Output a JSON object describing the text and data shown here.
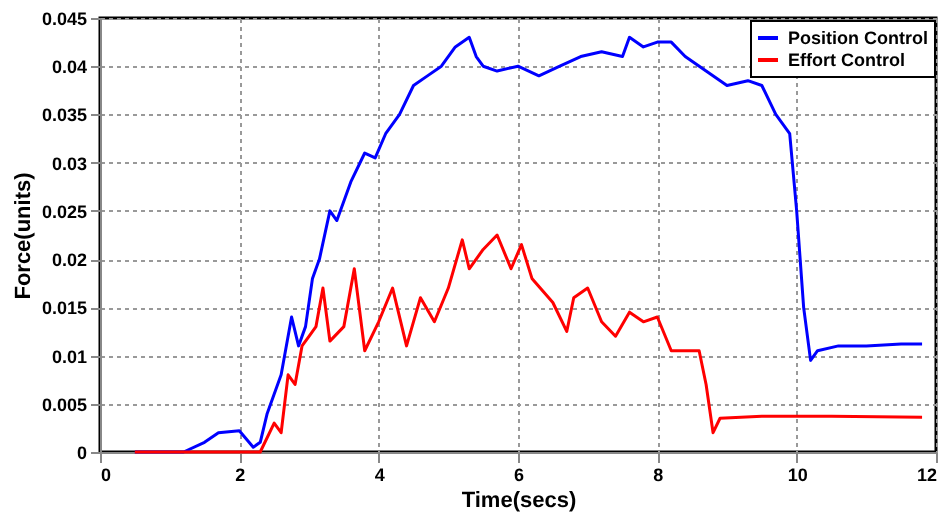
{
  "chart_data": {
    "type": "line",
    "xlabel": "Time(secs)",
    "ylabel": "Force(units)",
    "xlim": [
      0,
      12
    ],
    "xticks": [
      0,
      2,
      4,
      6,
      8,
      10,
      12
    ],
    "ylim": [
      0,
      0.045
    ],
    "yticks": [
      0,
      0.005,
      0.01,
      0.015,
      0.02,
      0.025,
      0.03,
      0.035,
      0.04,
      0.045
    ],
    "grid": true,
    "legend": "top right",
    "line_style": "solid",
    "marker": "none",
    "series": [
      {
        "name": "Position Control",
        "color": "#0000ff",
        "x": [
          0.5,
          1.2,
          1.5,
          1.7,
          2.0,
          2.2,
          2.3,
          2.4,
          2.6,
          2.75,
          2.85,
          2.95,
          3.05,
          3.15,
          3.3,
          3.4,
          3.6,
          3.8,
          3.95,
          4.1,
          4.3,
          4.5,
          4.7,
          4.9,
          5.1,
          5.3,
          5.4,
          5.5,
          5.7,
          6.0,
          6.3,
          6.6,
          6.9,
          7.2,
          7.5,
          7.6,
          7.8,
          8.0,
          8.2,
          8.4,
          8.7,
          9.0,
          9.3,
          9.5,
          9.7,
          9.9,
          10.0,
          10.1,
          10.2,
          10.3,
          10.6,
          11.0,
          11.5,
          11.8
        ],
        "values": [
          0,
          0,
          0.001,
          0.002,
          0.0022,
          0.0005,
          0.001,
          0.004,
          0.008,
          0.014,
          0.011,
          0.013,
          0.018,
          0.02,
          0.025,
          0.024,
          0.028,
          0.031,
          0.0305,
          0.033,
          0.035,
          0.038,
          0.039,
          0.04,
          0.042,
          0.043,
          0.041,
          0.04,
          0.0395,
          0.04,
          0.039,
          0.04,
          0.041,
          0.0415,
          0.041,
          0.043,
          0.042,
          0.0425,
          0.0425,
          0.041,
          0.0395,
          0.038,
          0.0385,
          0.038,
          0.035,
          0.033,
          0.025,
          0.015,
          0.0095,
          0.0105,
          0.011,
          0.011,
          0.0112,
          0.0112
        ]
      },
      {
        "name": "Effort Control",
        "color": "#ff0000",
        "x": [
          0.5,
          2.3,
          2.5,
          2.6,
          2.7,
          2.8,
          2.9,
          3.0,
          3.1,
          3.2,
          3.3,
          3.5,
          3.65,
          3.8,
          4.0,
          4.2,
          4.4,
          4.6,
          4.8,
          5.0,
          5.2,
          5.3,
          5.5,
          5.7,
          5.9,
          6.05,
          6.2,
          6.5,
          6.7,
          6.8,
          7.0,
          7.2,
          7.4,
          7.6,
          7.8,
          8.0,
          8.2,
          8.4,
          8.6,
          8.7,
          8.8,
          8.9,
          9.5,
          10.5,
          11.8
        ],
        "values": [
          0,
          0,
          0.003,
          0.002,
          0.008,
          0.007,
          0.011,
          0.012,
          0.013,
          0.017,
          0.0115,
          0.013,
          0.019,
          0.0105,
          0.0135,
          0.017,
          0.011,
          0.016,
          0.0135,
          0.017,
          0.022,
          0.019,
          0.021,
          0.0225,
          0.019,
          0.0215,
          0.018,
          0.0155,
          0.0125,
          0.016,
          0.017,
          0.0135,
          0.012,
          0.0145,
          0.0135,
          0.014,
          0.0105,
          0.0105,
          0.0105,
          0.007,
          0.002,
          0.0035,
          0.0037,
          0.0037,
          0.0036
        ]
      }
    ]
  }
}
